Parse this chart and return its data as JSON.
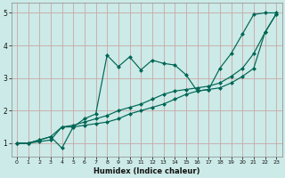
{
  "xlabel": "Humidex (Indice chaleur)",
  "bg_color": "#cceae7",
  "grid_color": "#c8a8a8",
  "line_color": "#006655",
  "xlim": [
    -0.5,
    23.5
  ],
  "ylim": [
    0.6,
    5.3
  ],
  "xticks": [
    0,
    1,
    2,
    3,
    4,
    5,
    6,
    7,
    8,
    9,
    10,
    11,
    12,
    13,
    14,
    15,
    16,
    17,
    18,
    19,
    20,
    21,
    22,
    23
  ],
  "yticks": [
    1,
    2,
    3,
    4,
    5
  ],
  "line1_x": [
    0,
    1,
    2,
    3,
    4,
    5,
    6,
    7,
    8,
    9,
    10,
    11,
    12,
    13,
    14,
    15,
    16,
    17,
    18,
    19,
    20,
    21,
    22,
    23
  ],
  "line1_y": [
    1.0,
    1.0,
    1.1,
    1.2,
    0.85,
    1.5,
    1.75,
    1.9,
    3.7,
    3.35,
    3.65,
    3.25,
    3.55,
    3.45,
    3.4,
    3.1,
    2.6,
    2.65,
    3.3,
    3.75,
    4.35,
    4.95,
    5.0,
    5.0
  ],
  "line2_x": [
    0,
    1,
    2,
    3,
    4,
    5,
    6,
    7,
    8,
    9,
    10,
    11,
    12,
    13,
    14,
    15,
    16,
    17,
    18,
    19,
    20,
    21,
    22,
    23
  ],
  "line2_y": [
    1.0,
    1.0,
    1.1,
    1.2,
    1.5,
    1.55,
    1.65,
    1.75,
    1.85,
    2.0,
    2.1,
    2.2,
    2.35,
    2.5,
    2.6,
    2.65,
    2.7,
    2.75,
    2.85,
    3.05,
    3.3,
    3.75,
    4.4,
    4.97
  ],
  "line3_x": [
    0,
    1,
    2,
    3,
    4,
    5,
    6,
    7,
    8,
    9,
    10,
    11,
    12,
    13,
    14,
    15,
    16,
    17,
    18,
    19,
    20,
    21,
    22,
    23
  ],
  "line3_y": [
    1.0,
    1.0,
    1.05,
    1.1,
    1.5,
    1.5,
    1.55,
    1.6,
    1.65,
    1.75,
    1.9,
    2.0,
    2.1,
    2.2,
    2.35,
    2.5,
    2.6,
    2.65,
    2.7,
    2.85,
    3.05,
    3.3,
    4.4,
    4.97
  ]
}
